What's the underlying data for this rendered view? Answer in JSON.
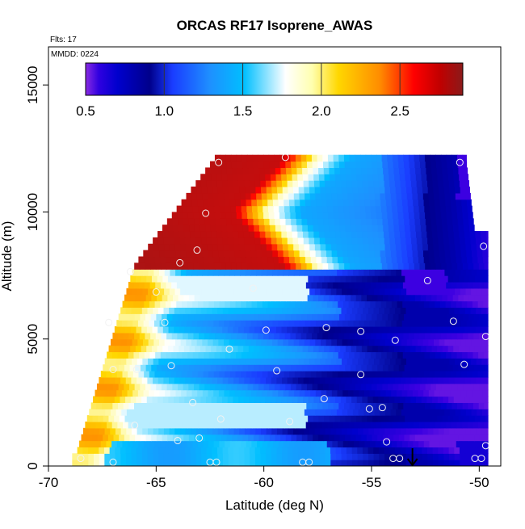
{
  "chart_data": {
    "type": "heatmap",
    "title": "ORCAS RF17 Isoprene_AWAS",
    "annotations": {
      "flights": "Flts: 17",
      "date": "MMDD: 0224"
    },
    "xlabel": "Latitude (deg N)",
    "ylabel": "Altitude (m)",
    "xlim": [
      -70,
      -49
    ],
    "ylim": [
      0,
      16500
    ],
    "x_ticks": [
      -70,
      -65,
      -60,
      -55,
      -50
    ],
    "x_tick_labels": [
      "-70",
      "-65",
      "-60",
      "-55",
      "-50"
    ],
    "y_ticks": [
      0,
      5000,
      10000,
      15000
    ],
    "y_tick_labels": [
      "0",
      "5000",
      "10000",
      "15000"
    ],
    "colorbar": {
      "range": [
        0.5,
        2.9
      ],
      "ticks": [
        0.5,
        1.0,
        1.5,
        2.0,
        2.5
      ],
      "tick_labels": [
        "0.5",
        "1.0",
        "1.5",
        "2.0",
        "2.5"
      ],
      "colors": [
        "#8a2be2",
        "#0000cd",
        "#00008b",
        "#1e5fff",
        "#00bfff",
        "#ffffff",
        "#ffd700",
        "#ff8c00",
        "#ff0000",
        "#8b1a1a"
      ]
    },
    "grid": false,
    "legend": "none",
    "field_extent": {
      "lat_min": -68.9,
      "lat_max": -49.6,
      "alt_min": 0,
      "alt_max": 12200
    },
    "samples": [
      {
        "lat": -68.5,
        "alt": 300
      },
      {
        "lat": -67,
        "alt": 150
      },
      {
        "lat": -66,
        "alt": 1600
      },
      {
        "lat": -64,
        "alt": 1000
      },
      {
        "lat": -62.5,
        "alt": 150
      },
      {
        "lat": -62.2,
        "alt": 150
      },
      {
        "lat": -58.2,
        "alt": 150
      },
      {
        "lat": -57.9,
        "alt": 150
      },
      {
        "lat": -54,
        "alt": 300
      },
      {
        "lat": -53.7,
        "alt": 300
      },
      {
        "lat": -50.2,
        "alt": 300
      },
      {
        "lat": -49.9,
        "alt": 300
      },
      {
        "lat": -49.7,
        "alt": 800
      },
      {
        "lat": -54.3,
        "alt": 950
      },
      {
        "lat": -63,
        "alt": 1100
      },
      {
        "lat": -62,
        "alt": 1850
      },
      {
        "lat": -58.8,
        "alt": 1750
      },
      {
        "lat": -57.2,
        "alt": 2650
      },
      {
        "lat": -55.1,
        "alt": 2250
      },
      {
        "lat": -54.5,
        "alt": 2300
      },
      {
        "lat": -63.3,
        "alt": 2500
      },
      {
        "lat": -65.9,
        "alt": 3800
      },
      {
        "lat": -67,
        "alt": 3800
      },
      {
        "lat": -64.3,
        "alt": 3950
      },
      {
        "lat": -59.4,
        "alt": 3750
      },
      {
        "lat": -55.5,
        "alt": 3600
      },
      {
        "lat": -50.7,
        "alt": 4000
      },
      {
        "lat": -61.6,
        "alt": 4600
      },
      {
        "lat": -53.9,
        "alt": 4950
      },
      {
        "lat": -49.7,
        "alt": 5100
      },
      {
        "lat": -59.9,
        "alt": 5350
      },
      {
        "lat": -57.1,
        "alt": 5450
      },
      {
        "lat": -55.5,
        "alt": 5300
      },
      {
        "lat": -64.6,
        "alt": 5650
      },
      {
        "lat": -51.2,
        "alt": 5700
      },
      {
        "lat": -67.2,
        "alt": 5650
      },
      {
        "lat": -65,
        "alt": 6850
      },
      {
        "lat": -60.5,
        "alt": 7000
      },
      {
        "lat": -52.4,
        "alt": 7300
      },
      {
        "lat": -66.2,
        "alt": 7650
      },
      {
        "lat": -63.9,
        "alt": 8000
      },
      {
        "lat": -63.1,
        "alt": 8500
      },
      {
        "lat": -49.8,
        "alt": 8650
      },
      {
        "lat": -62.7,
        "alt": 9950
      },
      {
        "lat": -62.1,
        "alt": 11950
      },
      {
        "lat": -59,
        "alt": 12150
      },
      {
        "lat": -50.9,
        "alt": 11950
      }
    ],
    "marker": {
      "lat": -53.1,
      "alt": 700
    }
  }
}
